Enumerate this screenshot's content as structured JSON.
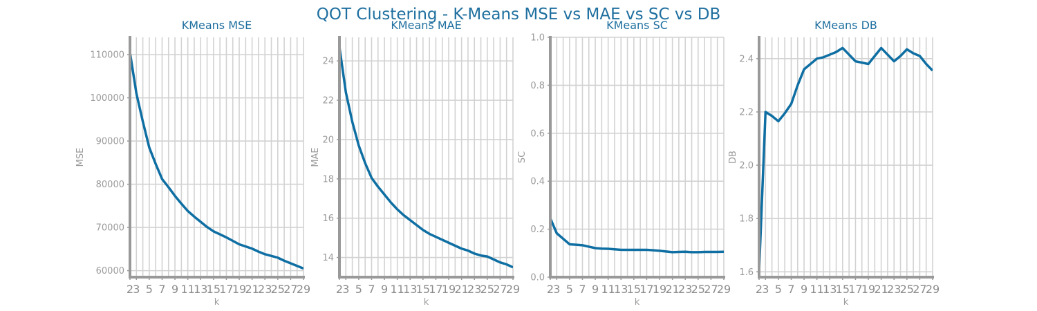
{
  "title": "QOT Clustering - K-Means MSE vs MAE vs SC vs DB",
  "colors": {
    "line": "#0f6fa3",
    "title": "#1f6f9f"
  },
  "chart_data": [
    {
      "type": "line",
      "title": "KMeans MSE",
      "xlabel": "k",
      "ylabel": "MSE",
      "x": [
        2,
        3,
        4,
        5,
        6,
        7,
        8,
        9,
        10,
        11,
        12,
        13,
        14,
        15,
        16,
        17,
        18,
        19,
        20,
        21,
        22,
        23,
        24,
        25,
        26,
        27,
        28,
        29
      ],
      "xticks": [
        2,
        3,
        5,
        7,
        9,
        11,
        13,
        15,
        17,
        19,
        21,
        23,
        25,
        27,
        29
      ],
      "xlim": [
        2,
        29
      ],
      "ylim": [
        58500,
        114000
      ],
      "yticks": [
        60000,
        70000,
        80000,
        90000,
        100000,
        110000
      ],
      "grid": true,
      "values": [
        110500,
        101000,
        94500,
        88500,
        84700,
        81200,
        79300,
        77300,
        75500,
        73800,
        72500,
        71300,
        70100,
        69100,
        68400,
        67700,
        66900,
        66100,
        65600,
        65100,
        64400,
        63800,
        63400,
        63000,
        62300,
        61700,
        61100,
        60500
      ]
    },
    {
      "type": "line",
      "title": "KMeans MAE",
      "xlabel": "k",
      "ylabel": "MAE",
      "x": [
        2,
        3,
        4,
        5,
        6,
        7,
        8,
        9,
        10,
        11,
        12,
        13,
        14,
        15,
        16,
        17,
        18,
        19,
        20,
        21,
        22,
        23,
        24,
        25,
        26,
        27,
        28,
        29
      ],
      "xticks": [
        2,
        3,
        5,
        7,
        9,
        11,
        13,
        15,
        17,
        19,
        21,
        23,
        25,
        27,
        29
      ],
      "xlim": [
        2,
        29
      ],
      "ylim": [
        13,
        25.2
      ],
      "yticks": [
        14,
        16,
        18,
        20,
        22,
        24
      ],
      "grid": true,
      "values": [
        24.7,
        22.4,
        20.9,
        19.7,
        18.8,
        18.05,
        17.6,
        17.2,
        16.8,
        16.45,
        16.15,
        15.9,
        15.65,
        15.4,
        15.2,
        15.05,
        14.9,
        14.75,
        14.6,
        14.45,
        14.35,
        14.2,
        14.1,
        14.05,
        13.9,
        13.75,
        13.65,
        13.5
      ]
    },
    {
      "type": "line",
      "title": "KMeans SC",
      "xlabel": "k",
      "ylabel": "SC",
      "x": [
        2,
        3,
        4,
        5,
        6,
        7,
        8,
        9,
        10,
        11,
        12,
        13,
        14,
        15,
        16,
        17,
        18,
        19,
        20,
        21,
        22,
        23,
        24,
        25,
        26,
        27,
        28,
        29
      ],
      "xticks": [
        2,
        3,
        5,
        7,
        9,
        11,
        13,
        15,
        17,
        19,
        21,
        23,
        25,
        27,
        29
      ],
      "xlim": [
        2,
        29
      ],
      "ylim": [
        0,
        1
      ],
      "yticks": [
        0.0,
        0.2,
        0.4,
        0.6,
        0.8,
        1.0
      ],
      "ytick_labels": [
        "0.0",
        "0.2",
        "0.4",
        "0.6",
        "0.8",
        "1.0"
      ],
      "grid": true,
      "values": [
        0.245,
        0.183,
        0.16,
        0.137,
        0.135,
        0.133,
        0.127,
        0.121,
        0.119,
        0.118,
        0.116,
        0.114,
        0.114,
        0.114,
        0.114,
        0.114,
        0.112,
        0.11,
        0.107,
        0.104,
        0.105,
        0.106,
        0.104,
        0.104,
        0.105,
        0.105,
        0.105,
        0.106
      ]
    },
    {
      "type": "line",
      "title": "KMeans DB",
      "xlabel": "k",
      "ylabel": "DB",
      "x": [
        2,
        3,
        4,
        5,
        6,
        7,
        8,
        9,
        10,
        11,
        12,
        13,
        14,
        15,
        16,
        17,
        18,
        19,
        20,
        21,
        22,
        23,
        24,
        25,
        26,
        27,
        28,
        29
      ],
      "xticks": [
        2,
        3,
        5,
        7,
        9,
        11,
        13,
        15,
        17,
        19,
        21,
        23,
        25,
        27,
        29
      ],
      "xlim": [
        2,
        29
      ],
      "ylim": [
        1.58,
        2.48
      ],
      "yticks": [
        1.6,
        1.8,
        2.0,
        2.2,
        2.4
      ],
      "ytick_labels": [
        "1.6",
        "1.8",
        "2.0",
        "2.2",
        "2.4"
      ],
      "grid": true,
      "values": [
        1.6,
        2.2,
        2.185,
        2.165,
        2.195,
        2.23,
        2.3,
        2.36,
        2.38,
        2.4,
        2.405,
        2.415,
        2.425,
        2.44,
        2.415,
        2.39,
        2.385,
        2.38,
        2.41,
        2.44,
        2.415,
        2.39,
        2.41,
        2.435,
        2.42,
        2.41,
        2.38,
        2.355
      ]
    }
  ]
}
